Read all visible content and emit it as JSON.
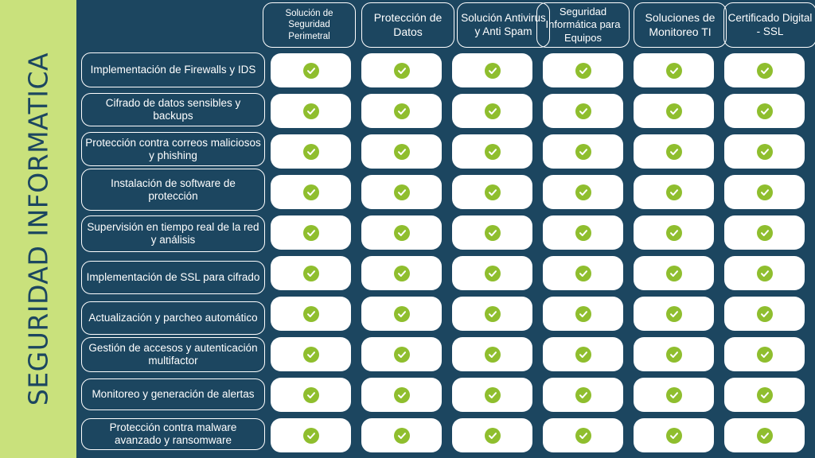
{
  "side_title": "SEGURIDAD INFORMATICA",
  "columns": [
    "Solución de Seguridad Perimetral",
    "Protección de Datos",
    "Solución Antivirus y Anti Spam",
    "Seguridad Informática para Equipos",
    "Soluciones de Monitoreo TI",
    "Certificado Digital - SSL"
  ],
  "rows": [
    "Implementación de Firewalls y IDS",
    "Cifrado de datos sensibles y backups",
    "Protección contra correos maliciosos y phishing",
    "Instalación de software de protección",
    "Supervisión en tiempo real de la red y análisis",
    "Implementación de SSL para cifrado",
    "Actualización y parcheo automático",
    "Gestión de accesos y autenticación multifactor",
    "Monitoreo y generación de alertas",
    "Protección contra malware avanzado y ransomware"
  ],
  "cells": [
    [
      true,
      true,
      true,
      true,
      true,
      true
    ],
    [
      true,
      true,
      true,
      true,
      true,
      true
    ],
    [
      true,
      true,
      true,
      true,
      true,
      true
    ],
    [
      true,
      true,
      true,
      true,
      true,
      true
    ],
    [
      true,
      true,
      true,
      true,
      true,
      true
    ],
    [
      true,
      true,
      true,
      true,
      true,
      true
    ],
    [
      true,
      true,
      true,
      true,
      true,
      true
    ],
    [
      true,
      true,
      true,
      true,
      true,
      true
    ],
    [
      true,
      true,
      true,
      true,
      true,
      true
    ],
    [
      true,
      true,
      true,
      true,
      true,
      true
    ]
  ],
  "colors": {
    "background": "#1c4660",
    "side_band": "#c9e17c",
    "check": "#8fbe2e"
  },
  "check_icon": "check-circle-icon"
}
